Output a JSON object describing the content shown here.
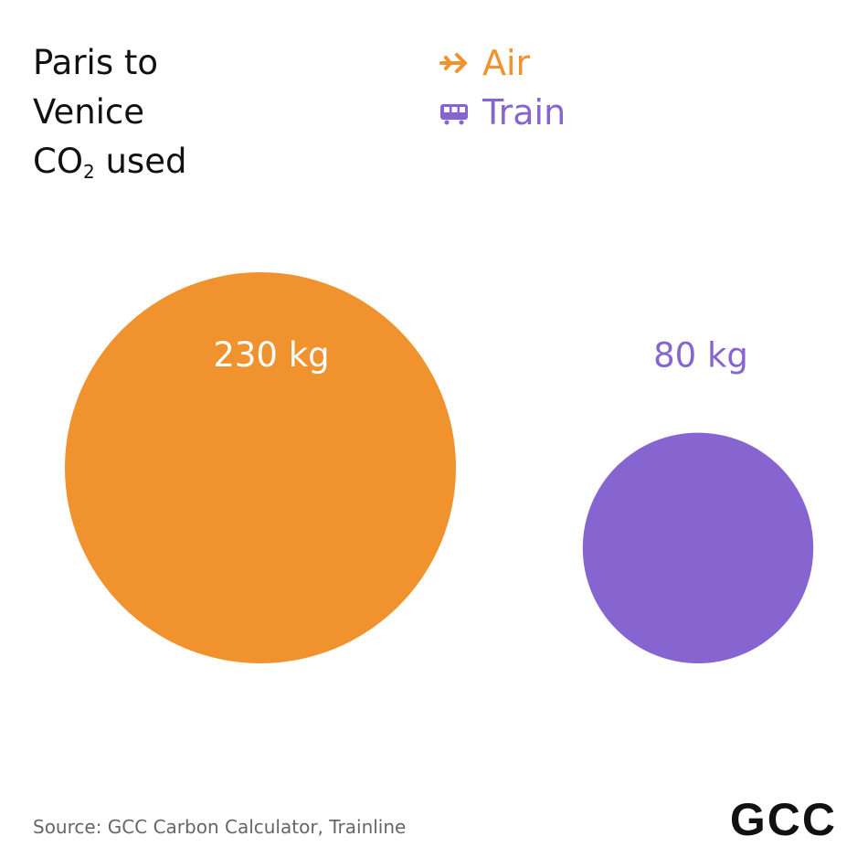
{
  "title": {
    "line1": "Paris to",
    "line2": "Venice",
    "line3_prefix": "CO",
    "line3_sub": "2",
    "line3_suffix": " used"
  },
  "legend": [
    {
      "label": "Air",
      "icon": "plane-arrow-icon",
      "color": "#F0922E"
    },
    {
      "label": "Train",
      "icon": "train-icon",
      "color": "#8665D1"
    }
  ],
  "chart_data": {
    "type": "bubble",
    "unit": "kg",
    "series": [
      {
        "name": "Air",
        "value": 230,
        "label": "230 kg",
        "color": "#F0922E"
      },
      {
        "name": "Train",
        "value": 80,
        "label": "80 kg",
        "color": "#8665D1"
      }
    ]
  },
  "source": "Source: GCC Carbon Calculator, Trainline",
  "logo": "GCC"
}
